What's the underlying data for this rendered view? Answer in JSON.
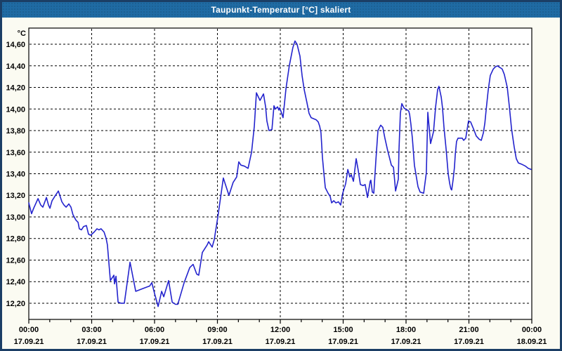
{
  "window": {
    "title": "Taupunkt-Temperatur [°C] skaliert"
  },
  "colors": {
    "titlebar_bg": "#1F6BA4",
    "titlebar_text": "#FFFFFF",
    "page_bg": "#FBFBF2",
    "outer_border": "#1B3E65",
    "plot_bg": "#FFFFFF",
    "plot_border": "#000000",
    "grid": "#000000",
    "line": "#2323CD"
  },
  "chart_data": {
    "type": "line",
    "title": "Taupunkt-Temperatur [°C] skaliert",
    "unit": "°C",
    "xlabel": "",
    "ylabel": "°C",
    "ylim": [
      12.05,
      14.75
    ],
    "xlim_hours": [
      0,
      24
    ],
    "grid": "dashed",
    "legend": "none",
    "minor_x_step_hours": 1,
    "y_ticks": [
      {
        "value": 14.6,
        "label": "14,60"
      },
      {
        "value": 14.4,
        "label": "14,40"
      },
      {
        "value": 14.2,
        "label": "14,20"
      },
      {
        "value": 14.0,
        "label": "14,00"
      },
      {
        "value": 13.8,
        "label": "13,80"
      },
      {
        "value": 13.6,
        "label": "13,60"
      },
      {
        "value": 13.4,
        "label": "13,40"
      },
      {
        "value": 13.2,
        "label": "13,20"
      },
      {
        "value": 13.0,
        "label": "13,00"
      },
      {
        "value": 12.8,
        "label": "12,80"
      },
      {
        "value": 12.6,
        "label": "12,60"
      },
      {
        "value": 12.4,
        "label": "12,40"
      },
      {
        "value": 12.2,
        "label": "12,20"
      }
    ],
    "x_ticks": [
      {
        "hour": 0,
        "time": "00:00",
        "date": "17.09.21"
      },
      {
        "hour": 3,
        "time": "03:00",
        "date": "17.09.21"
      },
      {
        "hour": 6,
        "time": "06:00",
        "date": "17.09.21"
      },
      {
        "hour": 9,
        "time": "09:00",
        "date": "17.09.21"
      },
      {
        "hour": 12,
        "time": "12:00",
        "date": "17.09.21"
      },
      {
        "hour": 15,
        "time": "15:00",
        "date": "17.09.21"
      },
      {
        "hour": 18,
        "time": "18:00",
        "date": "17.09.21"
      },
      {
        "hour": 21,
        "time": "21:00",
        "date": "17.09.21"
      },
      {
        "hour": 24,
        "time": "00:00",
        "date": "18.09.21"
      }
    ],
    "series": [
      {
        "name": "Taupunkt-Temperatur",
        "color": "#2323CD",
        "points": [
          [
            0.0,
            13.13
          ],
          [
            0.13,
            13.03
          ],
          [
            0.23,
            13.08
          ],
          [
            0.44,
            13.17
          ],
          [
            0.57,
            13.11
          ],
          [
            0.67,
            13.09
          ],
          [
            0.84,
            13.18
          ],
          [
            0.94,
            13.11
          ],
          [
            1.01,
            13.08
          ],
          [
            1.11,
            13.15
          ],
          [
            1.24,
            13.19
          ],
          [
            1.41,
            13.24
          ],
          [
            1.58,
            13.14
          ],
          [
            1.68,
            13.11
          ],
          [
            1.78,
            13.09
          ],
          [
            1.91,
            13.12
          ],
          [
            2.01,
            13.09
          ],
          [
            2.11,
            13.02
          ],
          [
            2.25,
            12.97
          ],
          [
            2.35,
            12.95
          ],
          [
            2.41,
            12.89
          ],
          [
            2.51,
            12.88
          ],
          [
            2.61,
            12.91
          ],
          [
            2.75,
            12.92
          ],
          [
            2.85,
            12.84
          ],
          [
            2.95,
            12.83
          ],
          [
            3.12,
            12.86
          ],
          [
            3.25,
            12.89
          ],
          [
            3.35,
            12.88
          ],
          [
            3.45,
            12.89
          ],
          [
            3.59,
            12.86
          ],
          [
            3.69,
            12.8
          ],
          [
            3.75,
            12.74
          ],
          [
            3.89,
            12.41
          ],
          [
            4.06,
            12.46
          ],
          [
            4.09,
            12.38
          ],
          [
            4.16,
            12.45
          ],
          [
            4.26,
            12.21
          ],
          [
            4.39,
            12.2
          ],
          [
            4.56,
            12.2
          ],
          [
            4.83,
            12.58
          ],
          [
            5.1,
            12.31
          ],
          [
            5.5,
            12.34
          ],
          [
            5.77,
            12.36
          ],
          [
            5.87,
            12.39
          ],
          [
            6.0,
            12.29
          ],
          [
            6.17,
            12.17
          ],
          [
            6.34,
            12.31
          ],
          [
            6.44,
            12.26
          ],
          [
            6.67,
            12.41
          ],
          [
            6.84,
            12.21
          ],
          [
            7.0,
            12.19
          ],
          [
            7.11,
            12.19
          ],
          [
            7.41,
            12.39
          ],
          [
            7.68,
            12.53
          ],
          [
            7.84,
            12.56
          ],
          [
            8.01,
            12.47
          ],
          [
            8.11,
            12.46
          ],
          [
            8.28,
            12.67
          ],
          [
            8.51,
            12.74
          ],
          [
            8.58,
            12.77
          ],
          [
            8.75,
            12.72
          ],
          [
            8.85,
            12.79
          ],
          [
            9.02,
            13.0
          ],
          [
            9.28,
            13.36
          ],
          [
            9.55,
            13.2
          ],
          [
            9.75,
            13.32
          ],
          [
            9.92,
            13.37
          ],
          [
            10.02,
            13.51
          ],
          [
            10.12,
            13.48
          ],
          [
            10.29,
            13.47
          ],
          [
            10.46,
            13.45
          ],
          [
            10.63,
            13.6
          ],
          [
            10.76,
            13.84
          ],
          [
            10.86,
            14.15
          ],
          [
            11.03,
            14.08
          ],
          [
            11.2,
            14.14
          ],
          [
            11.3,
            14.02
          ],
          [
            11.36,
            13.89
          ],
          [
            11.46,
            13.8
          ],
          [
            11.6,
            13.81
          ],
          [
            11.7,
            14.03
          ],
          [
            11.77,
            14.0
          ],
          [
            11.87,
            14.02
          ],
          [
            11.93,
            13.99
          ],
          [
            11.97,
            14.01
          ],
          [
            12.03,
            13.98
          ],
          [
            12.13,
            13.92
          ],
          [
            12.27,
            14.19
          ],
          [
            12.43,
            14.4
          ],
          [
            12.6,
            14.57
          ],
          [
            12.7,
            14.63
          ],
          [
            12.8,
            14.6
          ],
          [
            12.94,
            14.49
          ],
          [
            13.04,
            14.31
          ],
          [
            13.14,
            14.18
          ],
          [
            13.27,
            14.06
          ],
          [
            13.37,
            13.96
          ],
          [
            13.47,
            13.92
          ],
          [
            13.71,
            13.9
          ],
          [
            13.81,
            13.88
          ],
          [
            13.88,
            13.84
          ],
          [
            13.94,
            13.78
          ],
          [
            14.01,
            13.55
          ],
          [
            14.08,
            13.4
          ],
          [
            14.15,
            13.27
          ],
          [
            14.28,
            13.22
          ],
          [
            14.38,
            13.19
          ],
          [
            14.45,
            13.13
          ],
          [
            14.55,
            13.15
          ],
          [
            14.65,
            13.13
          ],
          [
            14.78,
            13.14
          ],
          [
            14.88,
            13.11
          ],
          [
            14.98,
            13.22
          ],
          [
            15.12,
            13.31
          ],
          [
            15.22,
            13.44
          ],
          [
            15.32,
            13.37
          ],
          [
            15.39,
            13.39
          ],
          [
            15.49,
            13.33
          ],
          [
            15.62,
            13.54
          ],
          [
            15.72,
            13.43
          ],
          [
            15.82,
            13.3
          ],
          [
            15.95,
            13.29
          ],
          [
            16.05,
            13.3
          ],
          [
            16.16,
            13.18
          ],
          [
            16.29,
            13.33
          ],
          [
            16.32,
            13.34
          ],
          [
            16.39,
            13.23
          ],
          [
            16.46,
            13.22
          ],
          [
            16.56,
            13.52
          ],
          [
            16.66,
            13.8
          ],
          [
            16.79,
            13.85
          ],
          [
            16.89,
            13.83
          ],
          [
            16.99,
            13.73
          ],
          [
            17.13,
            13.61
          ],
          [
            17.3,
            13.48
          ],
          [
            17.4,
            13.46
          ],
          [
            17.5,
            13.24
          ],
          [
            17.63,
            13.35
          ],
          [
            17.66,
            13.61
          ],
          [
            17.73,
            13.96
          ],
          [
            17.8,
            14.05
          ],
          [
            17.9,
            14.01
          ],
          [
            17.97,
            14.0
          ],
          [
            18.07,
            13.99
          ],
          [
            18.13,
            13.98
          ],
          [
            18.17,
            13.95
          ],
          [
            18.23,
            13.86
          ],
          [
            18.3,
            13.73
          ],
          [
            18.4,
            13.48
          ],
          [
            18.57,
            13.28
          ],
          [
            18.67,
            13.23
          ],
          [
            18.84,
            13.22
          ],
          [
            18.97,
            13.41
          ],
          [
            19.04,
            13.97
          ],
          [
            19.17,
            13.68
          ],
          [
            19.31,
            13.79
          ],
          [
            19.41,
            14.02
          ],
          [
            19.51,
            14.18
          ],
          [
            19.57,
            14.21
          ],
          [
            19.68,
            14.11
          ],
          [
            19.74,
            14.01
          ],
          [
            19.81,
            13.83
          ],
          [
            19.91,
            13.63
          ],
          [
            20.01,
            13.4
          ],
          [
            20.08,
            13.31
          ],
          [
            20.14,
            13.26
          ],
          [
            20.18,
            13.25
          ],
          [
            20.25,
            13.35
          ],
          [
            20.31,
            13.46
          ],
          [
            20.35,
            13.58
          ],
          [
            20.41,
            13.7
          ],
          [
            20.48,
            13.73
          ],
          [
            20.58,
            13.73
          ],
          [
            20.68,
            13.73
          ],
          [
            20.75,
            13.71
          ],
          [
            20.85,
            13.73
          ],
          [
            20.98,
            13.89
          ],
          [
            21.08,
            13.88
          ],
          [
            21.25,
            13.8
          ],
          [
            21.35,
            13.75
          ],
          [
            21.49,
            13.72
          ],
          [
            21.59,
            13.71
          ],
          [
            21.69,
            13.78
          ],
          [
            21.76,
            13.87
          ],
          [
            21.82,
            13.99
          ],
          [
            21.92,
            14.17
          ],
          [
            22.02,
            14.31
          ],
          [
            22.16,
            14.37
          ],
          [
            22.26,
            14.39
          ],
          [
            22.36,
            14.4
          ],
          [
            22.52,
            14.38
          ],
          [
            22.59,
            14.37
          ],
          [
            22.69,
            14.32
          ],
          [
            22.83,
            14.2
          ],
          [
            22.93,
            14.02
          ],
          [
            23.03,
            13.82
          ],
          [
            23.16,
            13.65
          ],
          [
            23.26,
            13.54
          ],
          [
            23.36,
            13.5
          ],
          [
            23.5,
            13.49
          ],
          [
            23.7,
            13.47
          ],
          [
            23.83,
            13.45
          ],
          [
            23.97,
            13.44
          ]
        ]
      }
    ]
  }
}
